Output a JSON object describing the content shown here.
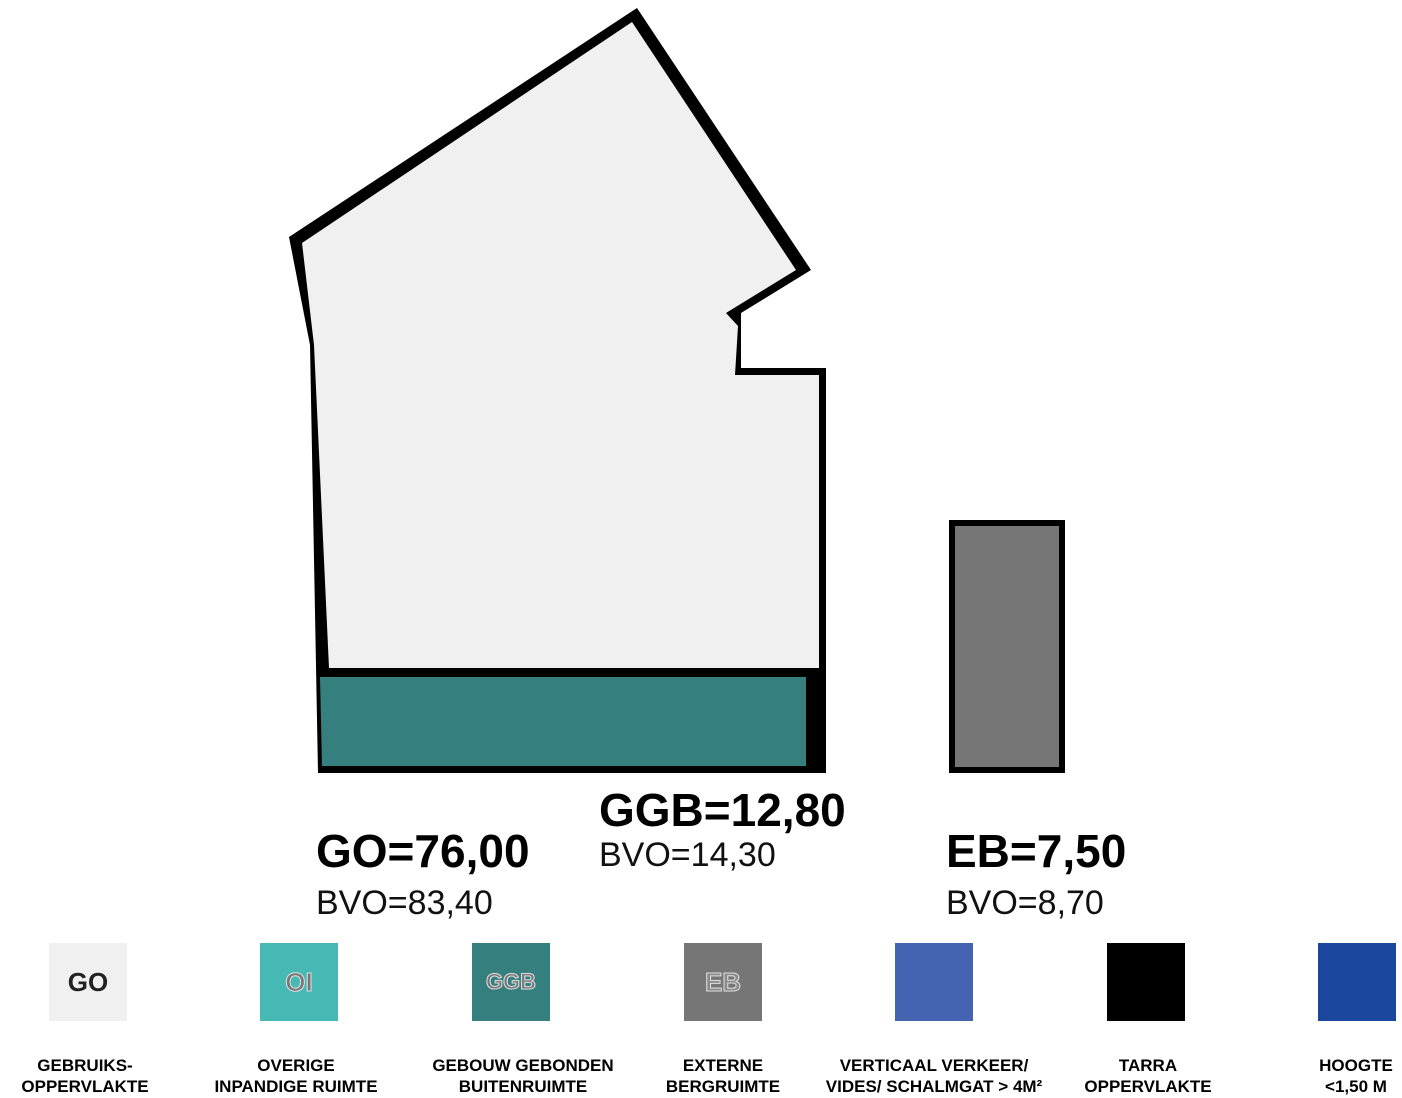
{
  "areas": {
    "go": {
      "label": "GO=76,00",
      "bvo": "BVO=83,40"
    },
    "ggb": {
      "label": "GGB=12,80",
      "bvo": "BVO=14,30"
    },
    "eb": {
      "label": "EB=7,50",
      "bvo": "BVO=8,70"
    }
  },
  "colors": {
    "go": "#f0f0f0",
    "oi": "#46b9b5",
    "ggb": "#35807f",
    "eb": "#767676",
    "vv": "#4463b0",
    "tarra": "#000000",
    "hoogte": "#1c479f",
    "outline": "#000000"
  },
  "legend": [
    {
      "code": "GO",
      "text": "GEBRUIKS-\nOPPERVLAKTE"
    },
    {
      "code": "OI",
      "text": "OVERIGE\nINPANDIGE RUIMTE"
    },
    {
      "code": "GGB",
      "text": "GEBOUW GEBONDEN\nBUITENRUIMTE"
    },
    {
      "code": "EB",
      "text": "EXTERNE\nBERGRUIMTE"
    },
    {
      "code": "",
      "text": "VERTICAAL VERKEER/\nVIDES/ SCHALMGAT > 4M²"
    },
    {
      "code": "",
      "text": "TARRA\nOPPERVLAKTE"
    },
    {
      "code": "",
      "text": "HOOGTE\n<1,50 M"
    }
  ]
}
